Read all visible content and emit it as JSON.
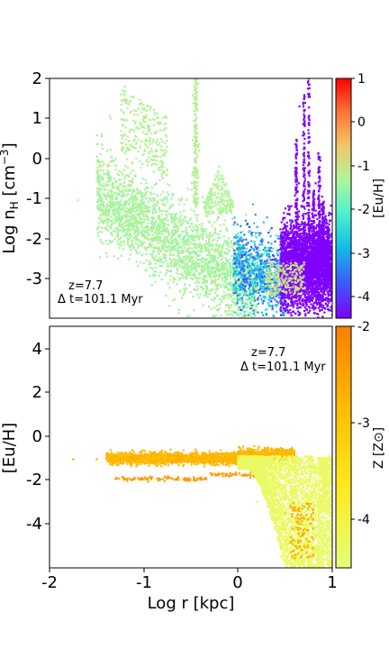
{
  "chart_data": [
    {
      "panel": "top",
      "type": "scatter",
      "xlabel": "Log r [kpc]",
      "ylabel": "Log n_H [cm^-3]",
      "xlim": [
        -2,
        1
      ],
      "ylim": [
        -4,
        2
      ],
      "yticks": [
        "2",
        "1",
        "0",
        "-1",
        "-2",
        "-3"
      ],
      "colorbar": {
        "label": "[Eu/H]",
        "range": [
          -4.5,
          1
        ],
        "ticks": [
          "1",
          "0",
          "-1",
          "-2",
          "-3",
          "-4"
        ],
        "colormap": "rainbow"
      },
      "annotation": [
        "z=7.7",
        "Δ t=101.1 Myr"
      ],
      "series": [
        {
          "description": "gas particles, density vs radius colored by [Eu/H]",
          "points": [
            [
              -1.7,
              -1.05,
              -1.3
            ],
            [
              -1.45,
              0.6,
              -1.1
            ],
            [
              -1.35,
              1.0,
              -1.2
            ],
            [
              -1.2,
              1.8,
              -1.1
            ],
            [
              -1.1,
              0.7,
              -1.3
            ],
            [
              -1.0,
              0.1,
              -1.4
            ],
            [
              -0.8,
              -0.5,
              -1.5
            ],
            [
              -0.6,
              -1.0,
              -1.4
            ],
            [
              -0.5,
              -1.5,
              -1.3
            ],
            [
              -0.45,
              1.9,
              -1.2
            ],
            [
              -0.3,
              -1.6,
              -1.5
            ],
            [
              -0.2,
              -0.2,
              -1.3
            ],
            [
              -0.1,
              -2.0,
              -1.6
            ],
            [
              0.0,
              -2.5,
              -2.5
            ],
            [
              0.2,
              -3.0,
              -2.8
            ],
            [
              0.4,
              -3.7,
              -2.2
            ],
            [
              0.55,
              -2.0,
              -4.5
            ],
            [
              0.65,
              1.3,
              -4.5
            ],
            [
              0.75,
              2.0,
              -4.5
            ],
            [
              0.85,
              -1.0,
              -4.5
            ],
            [
              0.95,
              -3.5,
              -4.5
            ]
          ]
        }
      ]
    },
    {
      "panel": "bottom",
      "type": "scatter",
      "xlabel": "Log r [kpc]",
      "ylabel": "[Eu/H]",
      "xlim": [
        -2,
        1
      ],
      "ylim": [
        -6,
        5
      ],
      "xticks": [
        "-2",
        "-1",
        "0",
        "1"
      ],
      "yticks": [
        "4",
        "2",
        "0",
        "-2",
        "-4"
      ],
      "colorbar": {
        "label": "Z [Z⊙]",
        "range": [
          -4.5,
          -2
        ],
        "ticks": [
          "-2",
          "-3",
          "-4"
        ],
        "colormap": "Wistia"
      },
      "annotation": [
        "z=7.7",
        "Δ t=101.1 Myr"
      ],
      "series": [
        {
          "description": "gas particles, [Eu/H] vs radius colored by metallicity",
          "points": [
            [
              -1.75,
              -1.05,
              -2.6
            ],
            [
              -1.5,
              -1.05,
              -2.6
            ],
            [
              -1.25,
              -1.0,
              -2.6
            ],
            [
              -1.0,
              -0.95,
              -2.7
            ],
            [
              -0.5,
              -0.9,
              -2.6
            ],
            [
              0.0,
              -0.7,
              -2.6
            ],
            [
              0.5,
              -0.8,
              -2.8
            ],
            [
              -1.3,
              -1.95,
              -2.4
            ],
            [
              -0.8,
              -1.95,
              -2.4
            ],
            [
              -0.2,
              -1.7,
              -2.5
            ],
            [
              0.5,
              -3.5,
              -3.0
            ],
            [
              0.7,
              -5.0,
              -2.8
            ],
            [
              0.2,
              -3.0,
              -4.4
            ],
            [
              0.45,
              -5.5,
              -4.5
            ],
            [
              0.9,
              -4.5,
              -4.4
            ]
          ]
        }
      ]
    }
  ]
}
